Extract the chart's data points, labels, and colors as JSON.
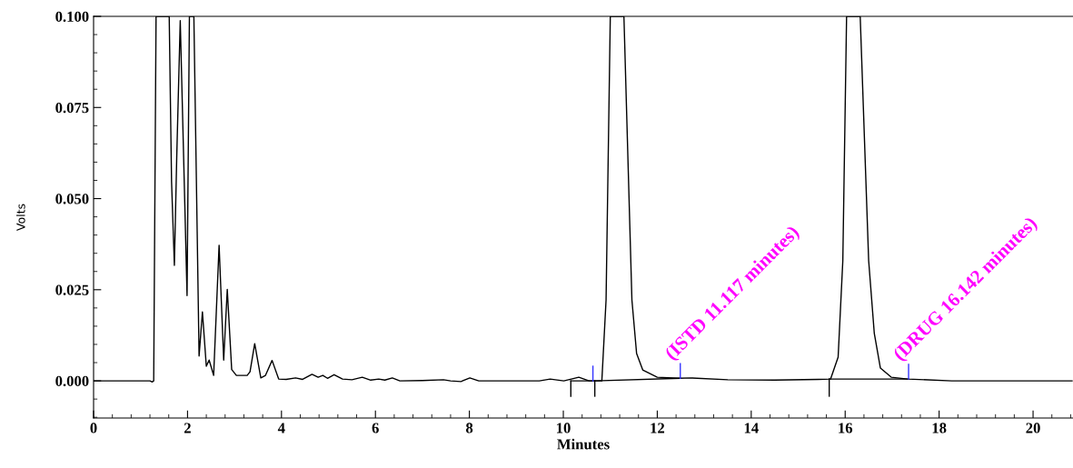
{
  "chart_data": {
    "type": "line",
    "xlabel": "Minutes",
    "ylabel": "Volts",
    "xlim": [
      0,
      20.85
    ],
    "xticks": [
      0,
      2,
      4,
      6,
      8,
      10,
      12,
      14,
      16,
      18,
      20
    ],
    "ylim": [
      -0.0102,
      0.1
    ],
    "yticks": [
      {
        "value": 0,
        "label": "0.000"
      },
      {
        "value": 0.025,
        "label": "0.025"
      },
      {
        "value": 0.05,
        "label": "0.050"
      },
      {
        "value": 0.075,
        "label": "0.075"
      },
      {
        "value": 0.1,
        "label": "0.100"
      }
    ],
    "grid": false,
    "legend": false,
    "marker": "none",
    "series": [
      {
        "color": "#000000",
        "x": [
          0,
          1.2,
          1.25,
          1.28,
          1.33,
          1.61,
          1.66,
          1.72,
          1.77,
          1.845,
          1.99,
          2.04,
          2.135,
          2.246,
          2.317,
          2.4,
          2.46,
          2.556,
          2.672,
          2.77,
          2.846,
          2.94,
          3.04,
          3.27,
          3.33,
          3.43,
          3.56,
          3.66,
          3.8,
          3.94,
          4.1,
          4.3,
          4.45,
          4.65,
          4.78,
          4.88,
          4.98,
          5.12,
          5.3,
          5.5,
          5.72,
          5.9,
          6.07,
          6.2,
          6.36,
          6.52,
          7.0,
          7.45,
          7.6,
          7.82,
          8.01,
          8.2,
          9.0,
          9.49,
          9.72,
          10.01,
          10.33,
          10.55,
          10.82,
          10.91,
          11.0,
          11.29,
          11.46,
          11.56,
          11.69,
          12.0,
          12.46,
          12.72,
          13.5,
          14.5,
          15.43,
          15.69,
          15.85,
          15.95,
          16.03,
          16.32,
          16.5,
          16.62,
          16.75,
          16.98,
          17.33,
          18.27,
          19.5,
          20.83
        ],
        "values": [
          0,
          0,
          -0.0003,
          0,
          0.1,
          0.1,
          0.0546,
          0.0317,
          0.0613,
          0.0988,
          0.0234,
          0.1,
          0.1,
          0.0068,
          0.0189,
          0.004,
          0.0057,
          0.0015,
          0.0372,
          0.0057,
          0.0251,
          0.0031,
          0.0015,
          0.0015,
          0.0025,
          0.0102,
          0.0008,
          0.0015,
          0.0056,
          0.0005,
          0.0004,
          0.0008,
          0.0004,
          0.0018,
          0.001,
          0.0015,
          0.0007,
          0.0017,
          0.0005,
          0.0003,
          0.001,
          0.0002,
          0.0005,
          0.0002,
          0.0008,
          0,
          0.0001,
          0.0003,
          0,
          -0.0002,
          0.0008,
          0,
          0,
          0,
          0.0005,
          0,
          0.001,
          0,
          0,
          0.0222,
          0.1,
          0.1,
          0.0222,
          0.0075,
          0.003,
          0.001,
          0.0007,
          0.0008,
          0.0003,
          0.0002,
          0.0004,
          0.0005,
          0.0065,
          0.033,
          0.1,
          0.1,
          0.033,
          0.013,
          0.0035,
          0.001,
          0.0005,
          0,
          0,
          0
        ]
      },
      {
        "color": "#000000",
        "x": [
          10.16,
          10.67,
          12.49
        ],
        "values": [
          0,
          0,
          0.0007
        ]
      },
      {
        "color": "#000000",
        "x": [
          15.66,
          17.35
        ],
        "values": [
          0.0005,
          0.0005
        ]
      },
      {
        "color": "#000000",
        "x": [
          10.16,
          10.16
        ],
        "values": [
          -0.0042,
          0
        ]
      },
      {
        "color": "#000000",
        "x": [
          10.67,
          10.67
        ],
        "values": [
          -0.0042,
          0
        ]
      },
      {
        "color": "#000000",
        "x": [
          15.66,
          15.66
        ],
        "values": [
          -0.0042,
          0.0005
        ]
      },
      {
        "color": "#3333ff",
        "x": [
          10.63,
          10.63
        ],
        "values": [
          0,
          0.004
        ]
      },
      {
        "color": "#3333ff",
        "x": [
          12.49,
          12.49
        ],
        "values": [
          0.0007,
          0.0047
        ]
      },
      {
        "color": "#3333ff",
        "x": [
          17.35,
          17.35
        ],
        "values": [
          0.0005,
          0.0045
        ]
      }
    ],
    "annotations": [
      {
        "text": "(ISTD 11.117 minutes)",
        "x": 12.49,
        "y": 0.0047
      },
      {
        "text": "(DRUG 16.142 minutes)",
        "x": 17.35,
        "y": 0.0045
      }
    ]
  }
}
